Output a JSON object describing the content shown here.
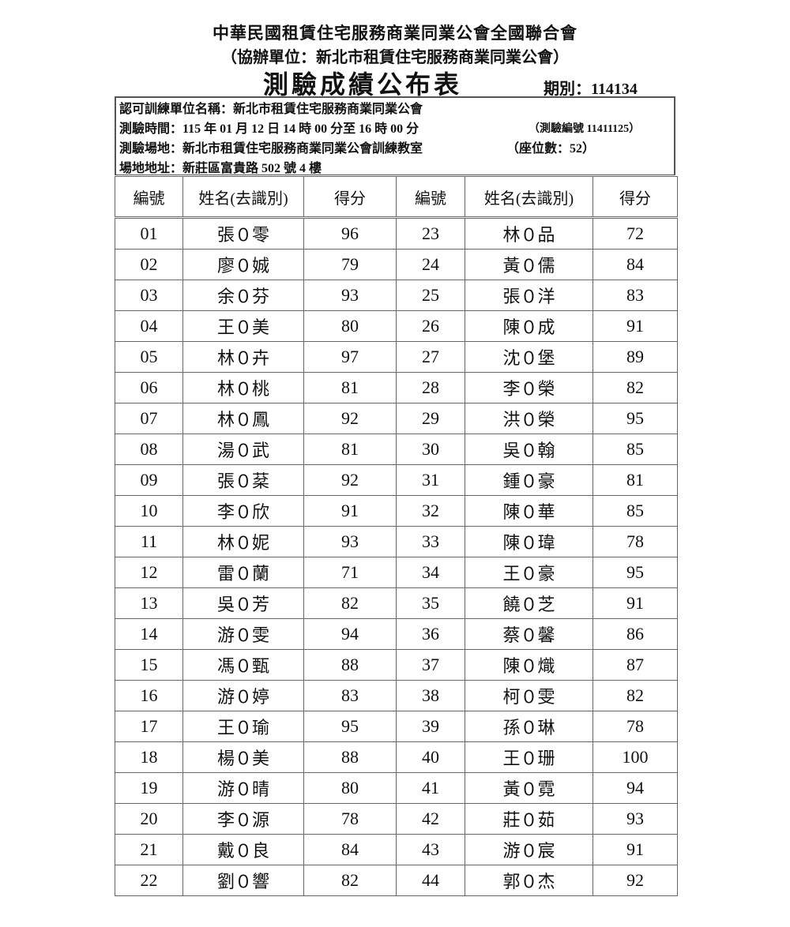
{
  "header": {
    "org": "中華民國租賃住宅服務商業同業公會全國聯合會",
    "co_org": "（協辦單位：新北市租賃住宅服務商業同業公會）",
    "title": "測驗成績公布表",
    "period": "期別：114134"
  },
  "info": {
    "unit": "認可訓練單位名稱：新北市租賃住宅服務商業同業公會",
    "time": "測驗時間：115 年 01 月 12 日 14 時 00 分至 16 時 00 分",
    "exam_no": "（測驗編號 11411125）",
    "venue": "測驗場地：新北市租賃住宅服務商業同業公會訓練教室",
    "seats": "（座位數：52）",
    "address": "場地地址：新莊區富貴路 502 號 4 樓"
  },
  "columns": [
    "編號",
    "姓名(去識別)",
    "得分",
    "編號",
    "姓名(去識別)",
    "得分"
  ],
  "rows": [
    {
      "l": [
        "01",
        "張０零",
        "96"
      ],
      "r": [
        "23",
        "林０品",
        "72"
      ]
    },
    {
      "l": [
        "02",
        "廖０娍",
        "79"
      ],
      "r": [
        "24",
        "黃０儒",
        "84"
      ]
    },
    {
      "l": [
        "03",
        "余０芬",
        "93"
      ],
      "r": [
        "25",
        "張０洋",
        "83"
      ]
    },
    {
      "l": [
        "04",
        "王０美",
        "80"
      ],
      "r": [
        "26",
        "陳０成",
        "91"
      ]
    },
    {
      "l": [
        "05",
        "林０卉",
        "97"
      ],
      "r": [
        "27",
        "沈０堡",
        "89"
      ]
    },
    {
      "l": [
        "06",
        "林０桃",
        "81"
      ],
      "r": [
        "28",
        "李０榮",
        "82"
      ]
    },
    {
      "l": [
        "07",
        "林０鳳",
        "92"
      ],
      "r": [
        "29",
        "洪０榮",
        "95"
      ]
    },
    {
      "l": [
        "08",
        "湯０武",
        "81"
      ],
      "r": [
        "30",
        "吳０翰",
        "85"
      ]
    },
    {
      "l": [
        "09",
        "張０棻",
        "92"
      ],
      "r": [
        "31",
        "鍾０豪",
        "81"
      ]
    },
    {
      "l": [
        "10",
        "李０欣",
        "91"
      ],
      "r": [
        "32",
        "陳０華",
        "85"
      ]
    },
    {
      "l": [
        "11",
        "林０妮",
        "93"
      ],
      "r": [
        "33",
        "陳０瑋",
        "78"
      ]
    },
    {
      "l": [
        "12",
        "雷０蘭",
        "71"
      ],
      "r": [
        "34",
        "王０豪",
        "95"
      ]
    },
    {
      "l": [
        "13",
        "吳０芳",
        "82"
      ],
      "r": [
        "35",
        "饒０芝",
        "91"
      ]
    },
    {
      "l": [
        "14",
        "游０雯",
        "94"
      ],
      "r": [
        "36",
        "蔡０馨",
        "86"
      ]
    },
    {
      "l": [
        "15",
        "馮０甄",
        "88"
      ],
      "r": [
        "37",
        "陳０熾",
        "87"
      ]
    },
    {
      "l": [
        "16",
        "游０婷",
        "83"
      ],
      "r": [
        "38",
        "柯０雯",
        "82"
      ]
    },
    {
      "l": [
        "17",
        "王０瑜",
        "95"
      ],
      "r": [
        "39",
        "孫０琳",
        "78"
      ]
    },
    {
      "l": [
        "18",
        "楊０美",
        "88"
      ],
      "r": [
        "40",
        "王０珊",
        "100"
      ]
    },
    {
      "l": [
        "19",
        "游０晴",
        "80"
      ],
      "r": [
        "41",
        "黃０霓",
        "94"
      ]
    },
    {
      "l": [
        "20",
        "李０源",
        "78"
      ],
      "r": [
        "42",
        "莊０茹",
        "93"
      ]
    },
    {
      "l": [
        "21",
        "戴０良",
        "84"
      ],
      "r": [
        "43",
        "游０宸",
        "91"
      ]
    },
    {
      "l": [
        "22",
        "劉０響",
        "82"
      ],
      "r": [
        "44",
        "郭０杰",
        "92"
      ]
    }
  ]
}
